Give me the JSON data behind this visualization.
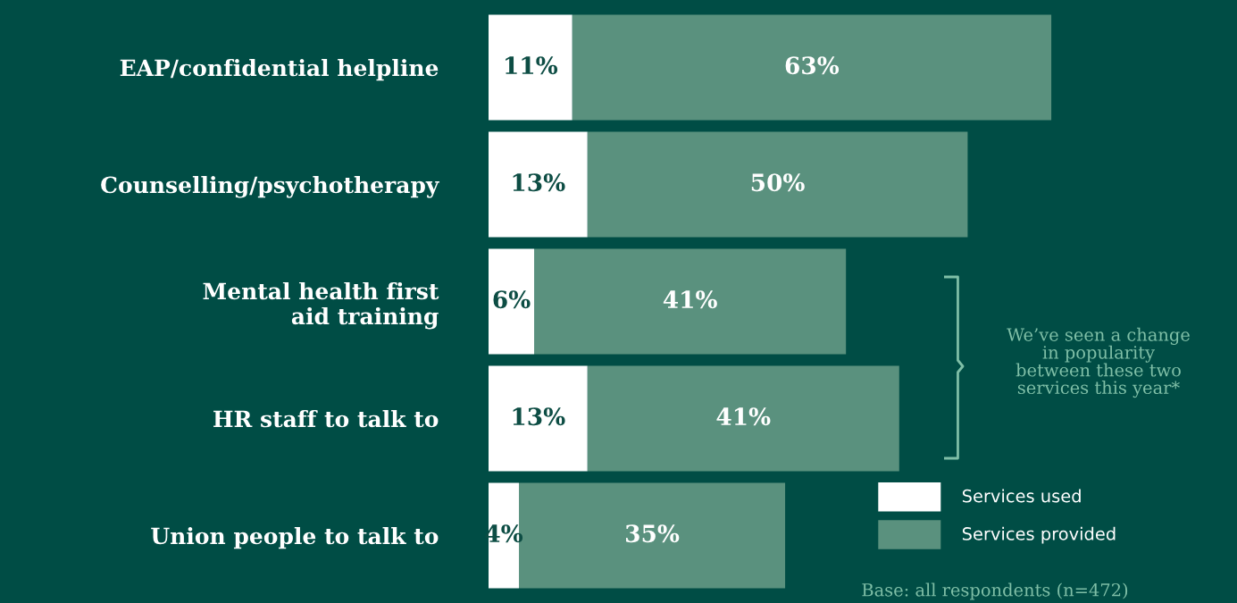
{
  "chart_data": {
    "type": "bar",
    "orientation": "horizontal",
    "stacked": true,
    "categories": [
      "EAP/confidential helpline",
      "Counselling/psychotherapy",
      "Mental health first\naid training",
      "HR staff to talk to",
      "Union people to talk to"
    ],
    "series": [
      {
        "name": "Services used",
        "color": "#ffffff",
        "values": [
          11,
          13,
          6,
          13,
          4
        ],
        "value_labels": [
          "11%",
          "13%",
          "6%",
          "13%",
          "4%"
        ]
      },
      {
        "name": "Services provided",
        "color": "#5a917e",
        "values": [
          63,
          50,
          41,
          41,
          35
        ],
        "value_labels": [
          "63%",
          "50%",
          "41%",
          "41%",
          "35%"
        ]
      }
    ],
    "legend": "bottom right",
    "grid": false,
    "annotations": [
      "We’ve seen a change\nin popularity\nbetween these two\nservices this year*",
      "Base: all respondents (n=472)"
    ]
  }
}
